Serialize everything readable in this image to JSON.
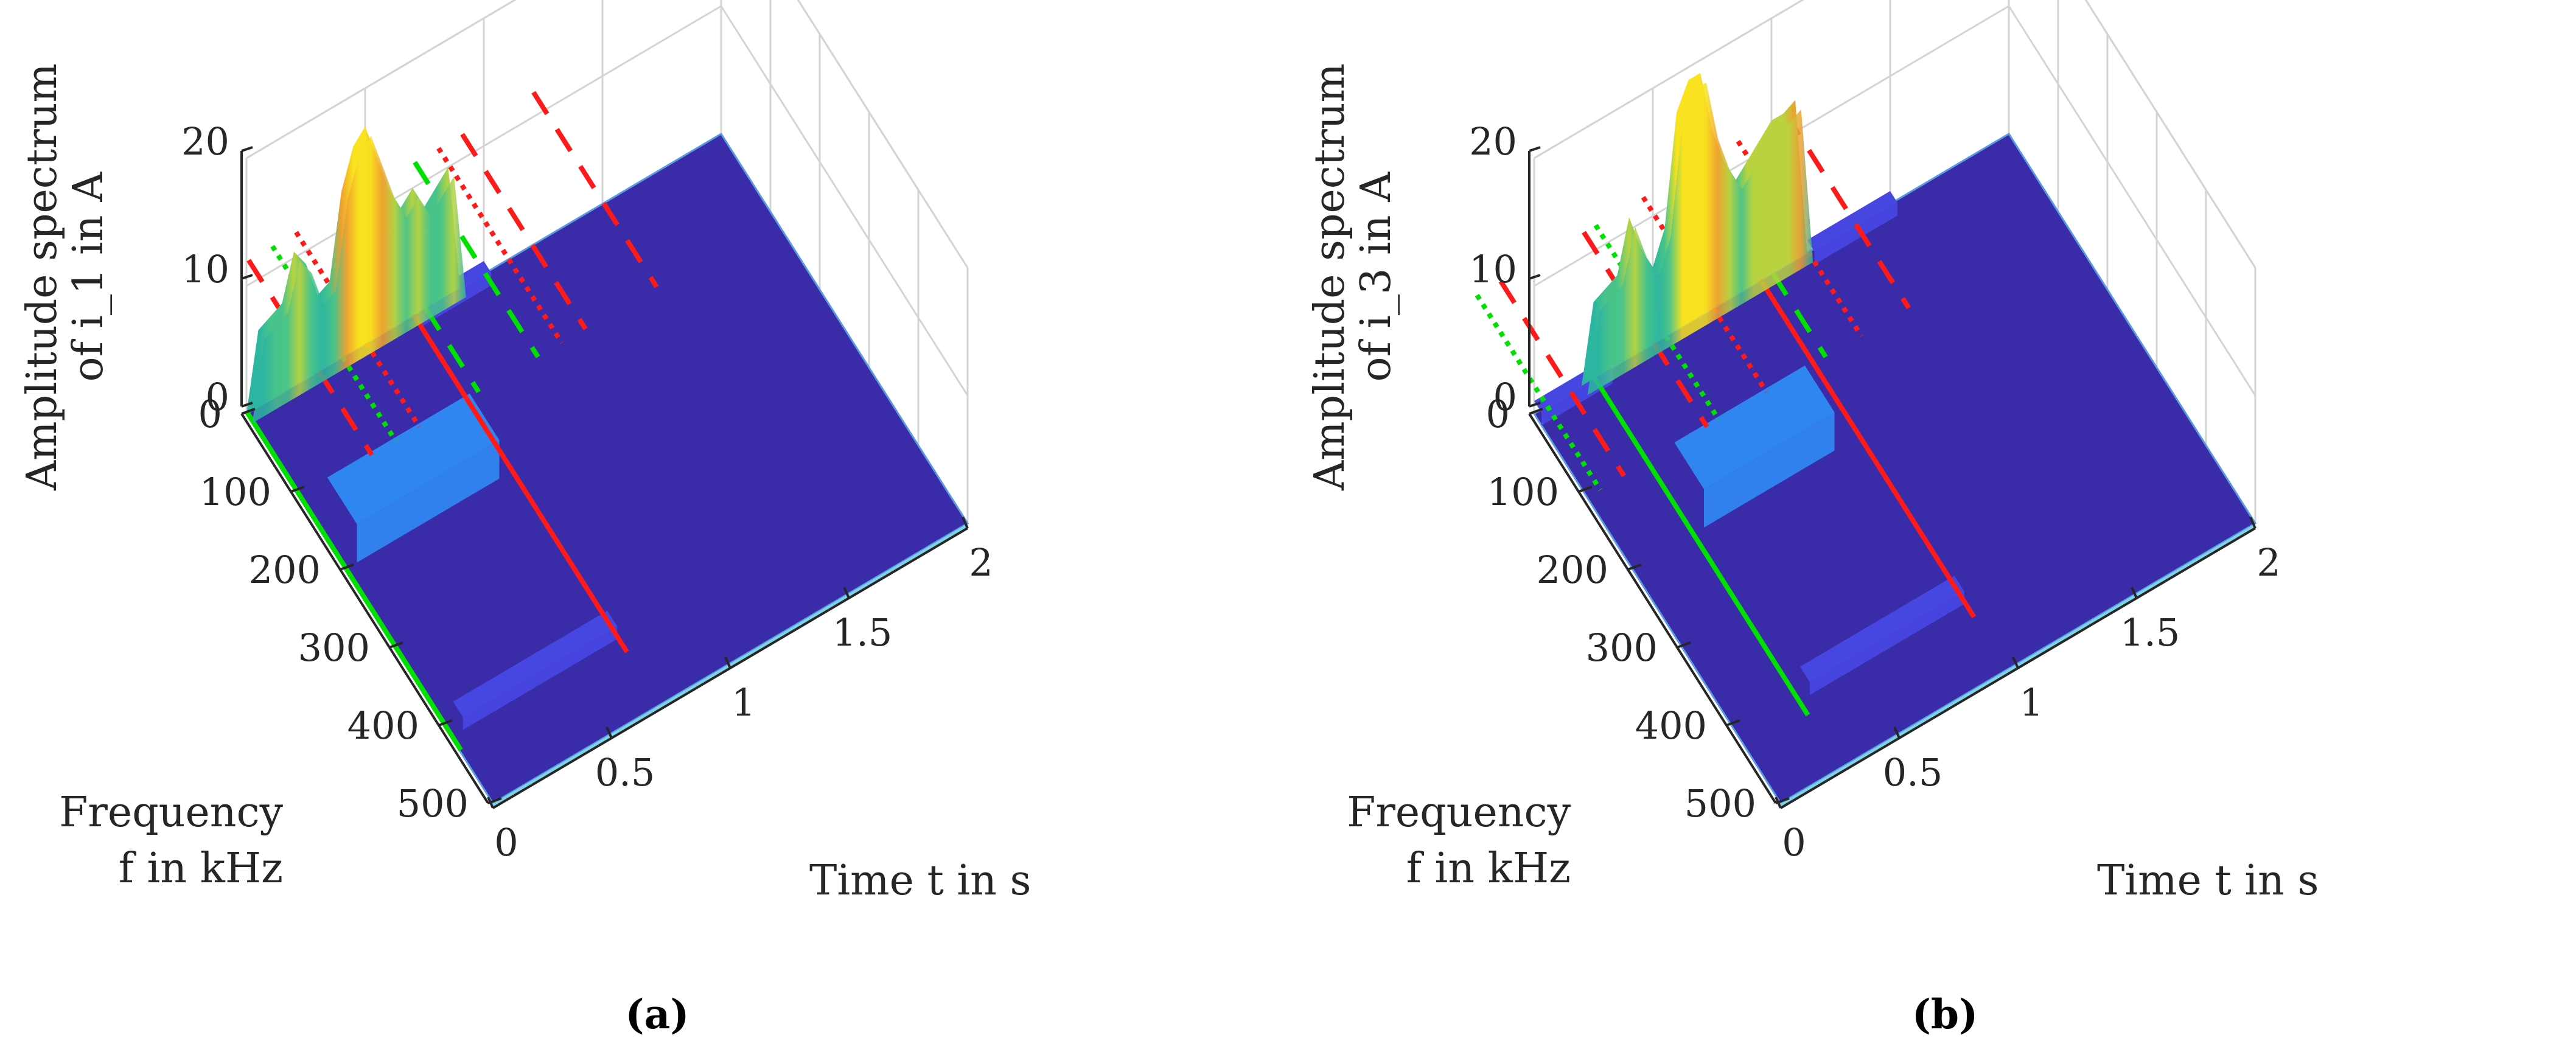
{
  "chart_data": [
    {
      "panel": "(a)",
      "type": "surface3d",
      "title": "",
      "zlabel_line1": "Amplitude spectrum",
      "zlabel_line2": "of i_1 in A",
      "zlabel_var": "i",
      "zlabel_sub": "1",
      "xlabel": "Time t in s",
      "ylabel_line1": "Frequency",
      "ylabel_line2": "f in kHz",
      "xlim": [
        0,
        2
      ],
      "ylim": [
        0,
        500
      ],
      "zlim": [
        0,
        20
      ],
      "xticks": [
        "0",
        "0.5",
        "1",
        "1.5",
        "2"
      ],
      "yticks": [
        "0",
        "100",
        "200",
        "300",
        "400",
        "500"
      ],
      "zticks": [
        "0",
        "10",
        "20"
      ],
      "surface_base_color": "#3a2ba8",
      "spectral_ridge_at_f0": {
        "t": [
          0.0,
          0.05,
          0.1,
          0.15,
          0.2,
          0.25,
          0.3,
          0.35,
          0.4,
          0.45,
          0.5,
          0.55,
          0.6,
          0.65,
          0.7,
          0.75,
          0.8,
          0.85,
          0.9
        ],
        "amplitude": [
          0,
          6,
          6.5,
          7,
          10.5,
          9,
          6,
          6.5,
          13,
          16,
          17,
          14,
          11,
          9,
          10,
          8,
          9,
          10,
          0
        ]
      },
      "bands": [
        {
          "f_start": 140,
          "f_end": 200,
          "t_start": 0.05,
          "t_end": 0.65,
          "amplitude": 3
        },
        {
          "f_start": 395,
          "f_end": 415,
          "t_start": 0.05,
          "t_end": 0.7,
          "amplitude": 1
        },
        {
          "f_start": 0,
          "f_end": 15,
          "t_start": 0.7,
          "t_end": 1.0,
          "amplitude": 1
        }
      ],
      "event_lines": [
        {
          "color": "#00e000",
          "style": "solid",
          "t": 0.0
        },
        {
          "color": "#ff1a1a",
          "style": "solid",
          "t": 0.7
        },
        {
          "color": "#ff1a1a",
          "style": "dashed",
          "t": 0.3
        },
        {
          "color": "#ff1a1a",
          "style": "dashed",
          "t": 1.2
        },
        {
          "color": "#ff1a1a",
          "style": "dashed",
          "t": 1.5
        },
        {
          "color": "#ff1a1a",
          "style": "dotted",
          "t": 0.5
        },
        {
          "color": "#ff1a1a",
          "style": "dotted",
          "t": 1.1
        },
        {
          "color": "#00e000",
          "style": "dotted",
          "t": 0.4
        },
        {
          "color": "#00e000",
          "style": "dashed",
          "t": 0.75
        },
        {
          "color": "#00e000",
          "style": "dashed",
          "t": 1.0
        }
      ]
    },
    {
      "panel": "(b)",
      "type": "surface3d",
      "title": "",
      "zlabel_line1": "Amplitude spectrum",
      "zlabel_line2": "of i_3 in A",
      "zlabel_var": "i",
      "zlabel_sub": "3",
      "xlabel": "Time t in s",
      "ylabel_line1": "Frequency",
      "ylabel_line2": "f in kHz",
      "xlim": [
        0,
        2
      ],
      "ylim": [
        0,
        500
      ],
      "zlim": [
        0,
        20
      ],
      "xticks": [
        "0",
        "0.5",
        "1",
        "1.5",
        "2"
      ],
      "yticks": [
        "0",
        "100",
        "200",
        "300",
        "400",
        "500"
      ],
      "zticks": [
        "0",
        "10",
        "20"
      ],
      "surface_base_color": "#3a2ba8",
      "spectral_ridge_at_f0": {
        "t": [
          0.2,
          0.25,
          0.3,
          0.35,
          0.4,
          0.45,
          0.5,
          0.55,
          0.6,
          0.65,
          0.7,
          0.75,
          0.8,
          0.85,
          0.9,
          0.95,
          1.0,
          1.05,
          1.1,
          1.15
        ],
        "amplitude": [
          0,
          6,
          6.5,
          7,
          11,
          8,
          6,
          8.5,
          17,
          19,
          19,
          14,
          11,
          9,
          10,
          11,
          12,
          12,
          12.5,
          0
        ]
      },
      "bands": [
        {
          "f_start": 140,
          "f_end": 200,
          "t_start": 0.3,
          "t_end": 0.85,
          "amplitude": 3
        },
        {
          "f_start": 395,
          "f_end": 415,
          "t_start": 0.3,
          "t_end": 0.95,
          "amplitude": 1
        },
        {
          "f_start": 0,
          "f_end": 15,
          "t_start": 0.0,
          "t_end": 0.3,
          "amplitude": 1
        },
        {
          "f_start": 0,
          "f_end": 15,
          "t_start": 1.15,
          "t_end": 1.5,
          "amplitude": 1
        }
      ],
      "event_lines": [
        {
          "color": "#00e000",
          "style": "solid",
          "t": 0.25
        },
        {
          "color": "#ff1a1a",
          "style": "solid",
          "t": 0.95
        },
        {
          "color": "#ff1a1a",
          "style": "dashed",
          "t": 0.5
        },
        {
          "color": "#ff1a1a",
          "style": "dashed",
          "t": 1.35
        },
        {
          "color": "#ff1a1a",
          "style": "dashed",
          "t": 0.15
        },
        {
          "color": "#ff1a1a",
          "style": "dotted",
          "t": 0.75
        },
        {
          "color": "#ff1a1a",
          "style": "dotted",
          "t": 1.15
        },
        {
          "color": "#00e000",
          "style": "dotted",
          "t": 0.05
        },
        {
          "color": "#00e000",
          "style": "dotted",
          "t": 0.55
        },
        {
          "color": "#00e000",
          "style": "dashed",
          "t": 1.0
        }
      ]
    }
  ]
}
